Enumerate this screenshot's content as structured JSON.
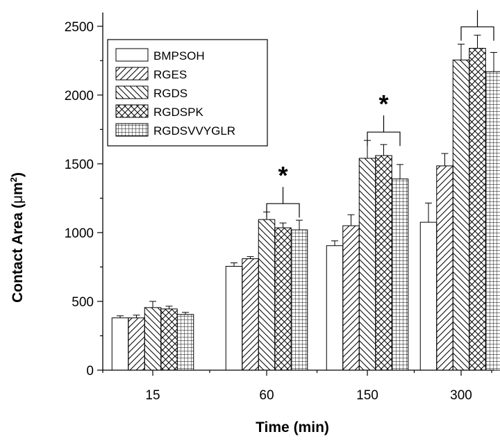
{
  "chart_data": {
    "type": "bar",
    "title": "",
    "xlabel": "Time (min)",
    "ylabel_main": "Contact Area (",
    "ylabel_unit_mu": "μ",
    "ylabel_unit_m": "m",
    "ylabel_sup": "2",
    "ylabel_close": ")",
    "categories": [
      "15",
      "60",
      "150",
      "300"
    ],
    "ylim": [
      0,
      2600
    ],
    "yticks": [
      "0",
      "500",
      "1000",
      "1500",
      "2000",
      "2500"
    ],
    "grid": false,
    "legend_position": "top-left",
    "series": [
      {
        "name": "BMPSOH",
        "pattern": "blank",
        "values": [
          380,
          755,
          905,
          1075
        ],
        "errors": [
          15,
          25,
          35,
          140
        ]
      },
      {
        "name": "RGES",
        "pattern": "forward-diagonal",
        "values": [
          380,
          810,
          1050,
          1485
        ],
        "errors": [
          20,
          15,
          80,
          90
        ]
      },
      {
        "name": "RGDS",
        "pattern": "back-diagonal",
        "values": [
          455,
          1095,
          1540,
          2255
        ],
        "errors": [
          45,
          55,
          130,
          115
        ]
      },
      {
        "name": "RGDSPK",
        "pattern": "crosshatch",
        "values": [
          445,
          1035,
          1560,
          2340
        ],
        "errors": [
          20,
          35,
          80,
          95
        ]
      },
      {
        "name": "RGDSVVYGLR",
        "pattern": "grid",
        "values": [
          405,
          1020,
          1390,
          2170
        ],
        "errors": [
          15,
          70,
          105,
          140
        ]
      }
    ],
    "annotations": [
      {
        "category": "60",
        "label": "*",
        "from_series": 2,
        "to_series": 4
      },
      {
        "category": "150",
        "label": "*",
        "from_series": 2,
        "to_series": 4
      },
      {
        "category": "300",
        "label": "*",
        "from_series": 2,
        "to_series": 4
      }
    ]
  }
}
